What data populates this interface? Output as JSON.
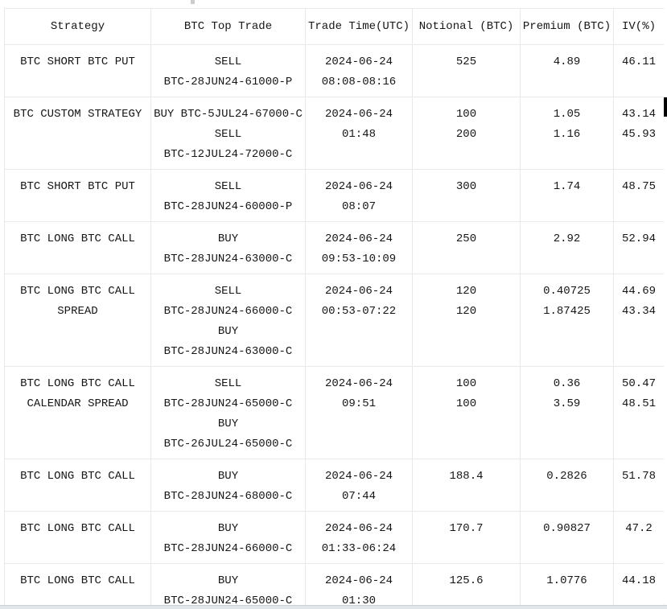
{
  "colors": {
    "border": "#e9e9e9",
    "text": "#161616",
    "background": "#ffffff",
    "scrollbar_thumb": "#000000",
    "scrollbar_track": "#ffffff",
    "hscrollbar_fill": "#e1e6ea",
    "hscrollbar_edge": "#c9d2d9"
  },
  "table": {
    "headers": [
      "Strategy",
      "BTC Top Trade",
      "Trade Time(UTC)",
      "Notional (BTC)",
      "Premium (BTC)",
      "IV(%)"
    ],
    "rows": [
      {
        "strategy": [
          "BTC SHORT BTC PUT"
        ],
        "trade": [
          "SELL",
          "BTC-28JUN24-61000-P"
        ],
        "time": [
          "2024-06-24",
          "08:08-08:16"
        ],
        "notional": [
          "525"
        ],
        "premium": [
          "4.89"
        ],
        "iv": [
          "46.11"
        ]
      },
      {
        "strategy": [
          "BTC CUSTOM STRATEGY"
        ],
        "trade": [
          "BUY BTC-5JUL24-67000-C",
          "SELL",
          "BTC-12JUL24-72000-C"
        ],
        "time": [
          "2024-06-24",
          "01:48"
        ],
        "notional": [
          "100",
          "200"
        ],
        "premium": [
          "1.05",
          "1.16"
        ],
        "iv": [
          "43.14",
          "45.93"
        ]
      },
      {
        "strategy": [
          "BTC SHORT BTC PUT"
        ],
        "trade": [
          "SELL",
          "BTC-28JUN24-60000-P"
        ],
        "time": [
          "2024-06-24",
          "08:07"
        ],
        "notional": [
          "300"
        ],
        "premium": [
          "1.74"
        ],
        "iv": [
          "48.75"
        ]
      },
      {
        "strategy": [
          "BTC LONG BTC CALL"
        ],
        "trade": [
          "BUY",
          "BTC-28JUN24-63000-C"
        ],
        "time": [
          "2024-06-24",
          "09:53-10:09"
        ],
        "notional": [
          "250"
        ],
        "premium": [
          "2.92"
        ],
        "iv": [
          "52.94"
        ]
      },
      {
        "strategy": [
          "BTC LONG BTC CALL",
          "SPREAD"
        ],
        "trade": [
          "SELL",
          "BTC-28JUN24-66000-C",
          "BUY",
          "BTC-28JUN24-63000-C"
        ],
        "time": [
          "2024-06-24",
          "00:53-07:22"
        ],
        "notional": [
          "120",
          "120"
        ],
        "premium": [
          "0.40725",
          "1.87425"
        ],
        "iv": [
          "44.69",
          "43.34"
        ]
      },
      {
        "strategy": [
          "BTC LONG BTC CALL",
          "CALENDAR SPREAD"
        ],
        "trade": [
          "SELL",
          "BTC-28JUN24-65000-C",
          "BUY",
          "BTC-26JUL24-65000-C"
        ],
        "time": [
          "2024-06-24",
          "09:51"
        ],
        "notional": [
          "100",
          "100"
        ],
        "premium": [
          "0.36",
          "3.59"
        ],
        "iv": [
          "50.47",
          "48.51"
        ]
      },
      {
        "strategy": [
          "BTC LONG BTC CALL"
        ],
        "trade": [
          "BUY",
          "BTC-28JUN24-68000-C"
        ],
        "time": [
          "2024-06-24",
          "07:44"
        ],
        "notional": [
          "188.4"
        ],
        "premium": [
          "0.2826"
        ],
        "iv": [
          "51.78"
        ]
      },
      {
        "strategy": [
          "BTC LONG BTC CALL"
        ],
        "trade": [
          "BUY",
          "BTC-28JUN24-66000-C"
        ],
        "time": [
          "2024-06-24",
          "01:33-06:24"
        ],
        "notional": [
          "170.7"
        ],
        "premium": [
          "0.90827"
        ],
        "iv": [
          "47.2"
        ]
      },
      {
        "strategy": [
          "BTC LONG BTC CALL"
        ],
        "trade": [
          "BUY",
          "BTC-28JUN24-65000-C"
        ],
        "time": [
          "2024-06-24",
          "01:30"
        ],
        "notional": [
          "125.6"
        ],
        "premium": [
          "1.0776"
        ],
        "iv": [
          "44.18"
        ]
      }
    ]
  }
}
